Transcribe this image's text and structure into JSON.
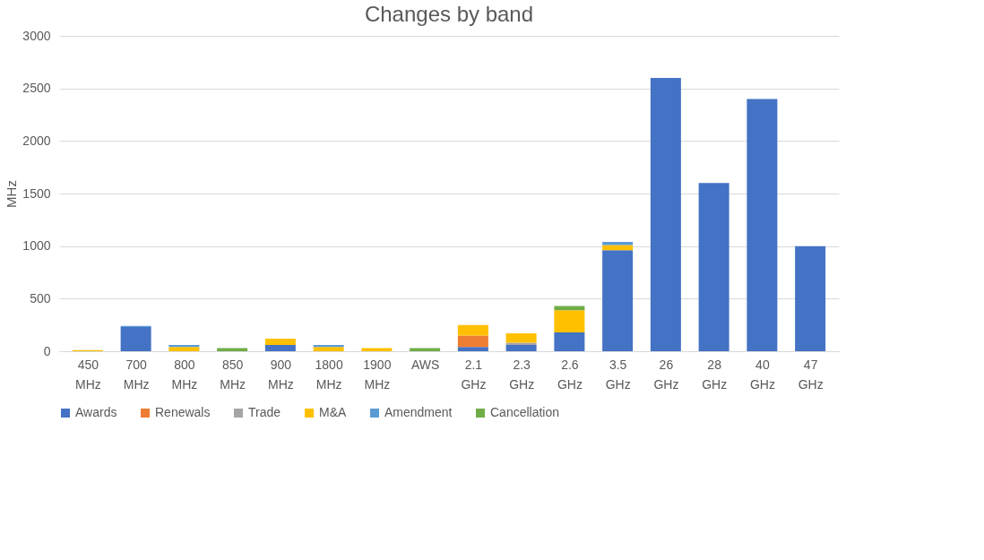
{
  "chart_data": {
    "type": "bar",
    "title": "Changes by band",
    "ylabel": "MHz",
    "stacked": true,
    "grid": "y",
    "legend": "bottom",
    "categories": [
      "450 MHz",
      "700 MHz",
      "800 MHz",
      "850 MHz",
      "900 MHz",
      "1800 MHz",
      "1900 MHz",
      "AWS",
      "2.1 GHz",
      "2.3 GHz",
      "2.6 GHz",
      "3.5 GHz",
      "26 GHz",
      "28 GHz",
      "40 GHz",
      "47 GHz"
    ],
    "ylim": [
      0,
      3000
    ],
    "yticks": [
      0,
      500,
      1000,
      1500,
      2000,
      2500,
      3000
    ],
    "series": [
      {
        "name": "Awards",
        "color": "#4472c4",
        "values": [
          null,
          230,
          null,
          null,
          60,
          null,
          null,
          null,
          40,
          60,
          180,
          960,
          2600,
          1600,
          2400,
          1000
        ]
      },
      {
        "name": "Renewals",
        "color": "#ed7d31",
        "values": [
          null,
          null,
          null,
          null,
          null,
          null,
          null,
          null,
          110,
          null,
          null,
          null,
          null,
          null,
          null,
          null
        ]
      },
      {
        "name": "Trade",
        "color": "#a5a5a5",
        "values": [
          null,
          null,
          null,
          null,
          null,
          null,
          null,
          null,
          null,
          20,
          null,
          null,
          null,
          null,
          null,
          null
        ]
      },
      {
        "name": "M&A",
        "color": "#ffc000",
        "values": [
          10,
          null,
          40,
          null,
          60,
          40,
          30,
          null,
          100,
          90,
          210,
          50,
          null,
          null,
          null,
          null
        ]
      },
      {
        "name": "Amendment",
        "color": "#5b9bd5",
        "values": [
          null,
          10,
          20,
          null,
          null,
          20,
          null,
          null,
          null,
          null,
          null,
          30,
          null,
          null,
          null,
          null
        ]
      },
      {
        "name": "Cancellation",
        "color": "#70ad47",
        "values": [
          null,
          null,
          null,
          30,
          null,
          null,
          null,
          30,
          null,
          null,
          40,
          null,
          null,
          null,
          null,
          null
        ]
      }
    ]
  }
}
